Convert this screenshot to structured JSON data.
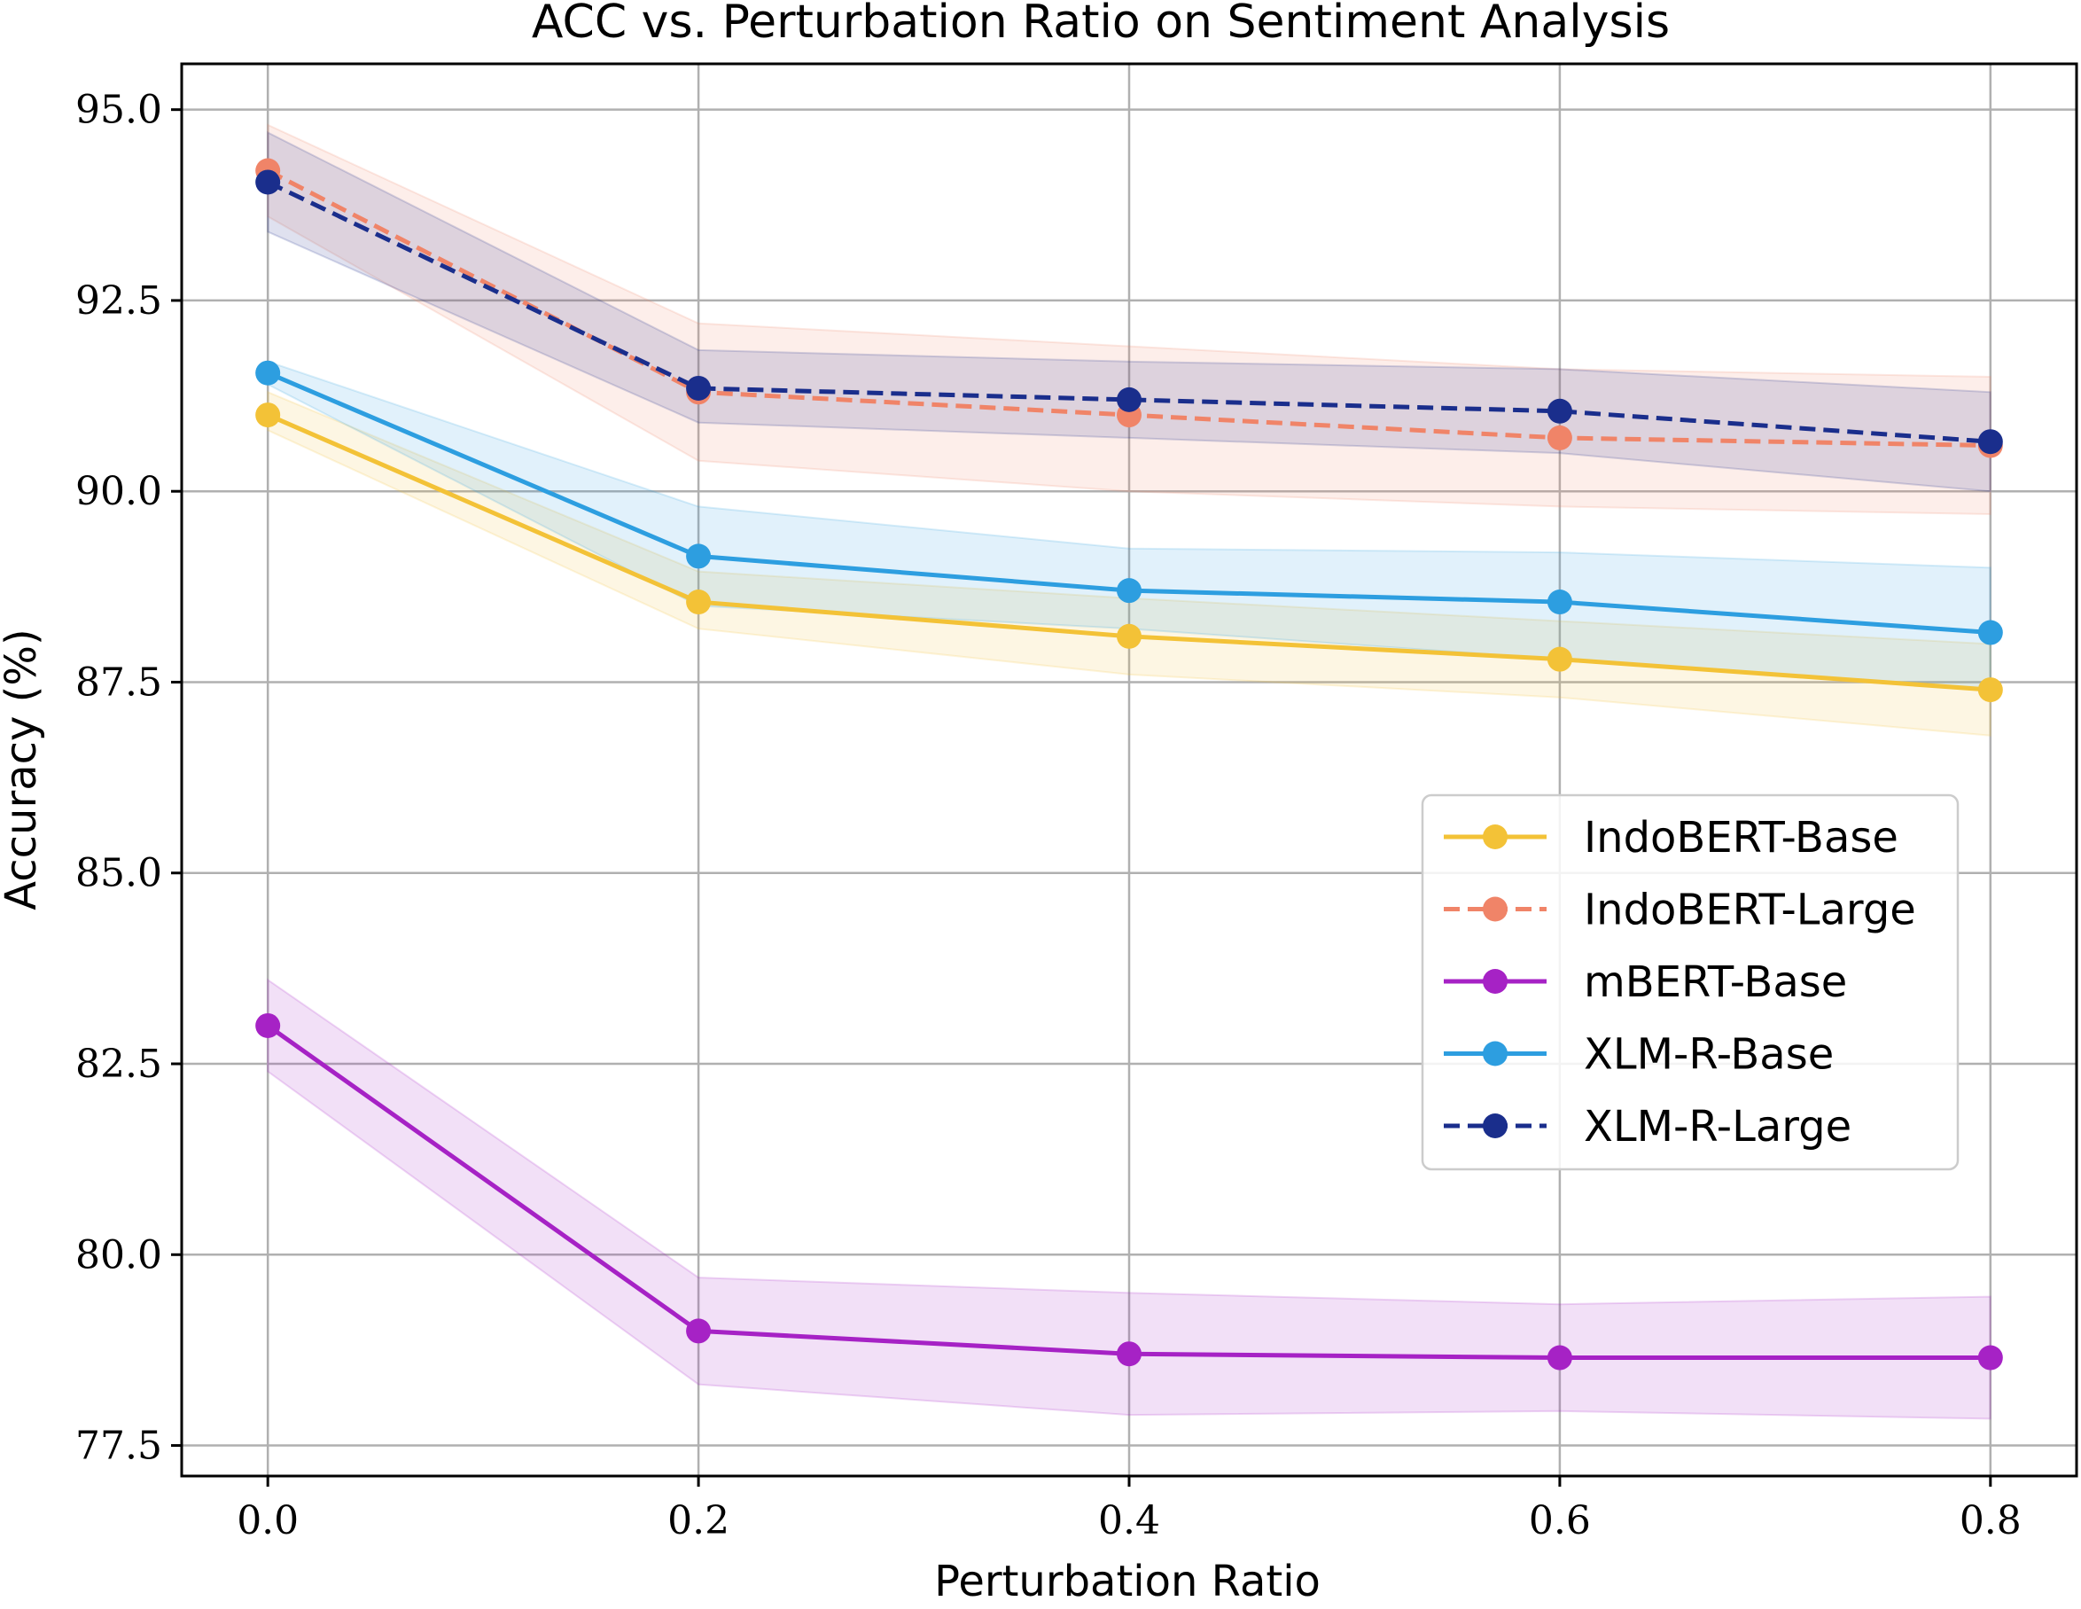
{
  "chart_data": {
    "type": "line",
    "title": "ACC vs. Perturbation Ratio on Sentiment Analysis",
    "xlabel": "Perturbation Ratio",
    "ylabel": "Accuracy (%)",
    "x": [
      0.0,
      0.2,
      0.4,
      0.6,
      0.8
    ],
    "x_tick_labels": [
      "0.0",
      "0.2",
      "0.4",
      "0.6",
      "0.8"
    ],
    "xlim": [
      -0.04,
      0.84
    ],
    "y_ticks": [
      77.5,
      80.0,
      82.5,
      85.0,
      87.5,
      90.0,
      92.5,
      95.0
    ],
    "y_tick_labels": [
      "77.5",
      "80.0",
      "82.5",
      "85.0",
      "87.5",
      "90.0",
      "92.5",
      "95.0"
    ],
    "ylim": [
      77.1,
      95.6
    ],
    "grid": true,
    "legend_position": "center-right",
    "series": [
      {
        "name": "IndoBERT-Base",
        "color": "#f3c237",
        "linestyle": "solid",
        "values": [
          91.0,
          88.55,
          88.1,
          87.8,
          87.4
        ],
        "band_low": [
          90.8,
          88.2,
          87.6,
          87.3,
          86.8
        ],
        "band_high": [
          91.3,
          88.95,
          88.6,
          88.3,
          88.0
        ]
      },
      {
        "name": "IndoBERT-Large",
        "color": "#f08468",
        "linestyle": "dashed",
        "values": [
          94.2,
          91.3,
          91.0,
          90.7,
          90.6
        ],
        "band_low": [
          93.6,
          90.4,
          90.0,
          89.8,
          89.7
        ],
        "band_high": [
          94.8,
          92.2,
          91.9,
          91.6,
          91.5
        ]
      },
      {
        "name": "mBERT-Base",
        "color": "#a622c5",
        "linestyle": "solid",
        "values": [
          83.0,
          79.0,
          78.7,
          78.65,
          78.65
        ],
        "band_low": [
          82.4,
          78.3,
          77.9,
          77.95,
          77.85
        ],
        "band_high": [
          83.6,
          79.7,
          79.5,
          79.35,
          79.45
        ]
      },
      {
        "name": "XLM-R-Base",
        "color": "#2d9ee0",
        "linestyle": "solid",
        "values": [
          91.55,
          89.15,
          88.7,
          88.55,
          88.15
        ],
        "band_low": [
          91.4,
          88.5,
          88.2,
          87.8,
          87.4
        ],
        "band_high": [
          91.7,
          89.8,
          89.25,
          89.2,
          89.0
        ]
      },
      {
        "name": "XLM-R-Large",
        "color": "#1a2e8c",
        "linestyle": "dashed",
        "values": [
          94.05,
          91.35,
          91.2,
          91.05,
          90.65
        ],
        "band_low": [
          93.4,
          90.9,
          90.7,
          90.5,
          90.0
        ],
        "band_high": [
          94.7,
          91.85,
          91.7,
          91.6,
          91.3
        ]
      }
    ]
  }
}
